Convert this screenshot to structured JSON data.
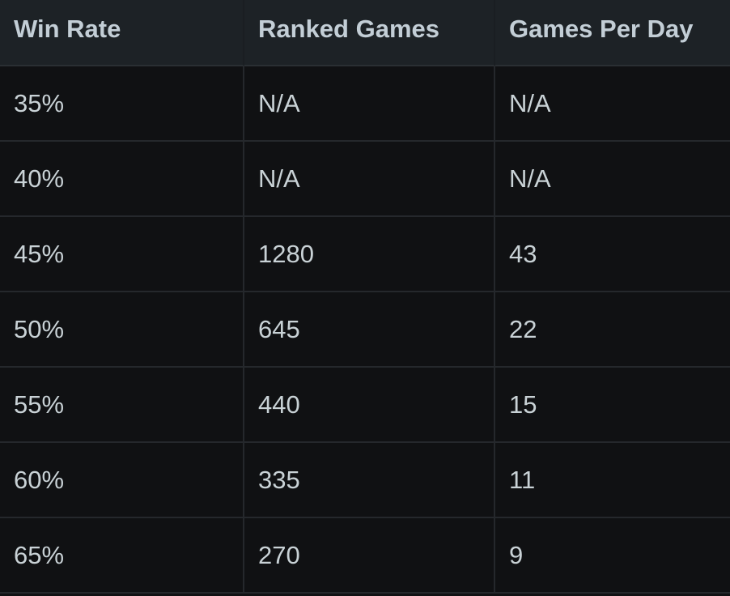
{
  "table": {
    "headers": [
      "Win Rate",
      "Ranked Games",
      "Games Per Day"
    ],
    "rows": [
      [
        "35%",
        "N/A",
        "N/A"
      ],
      [
        "40%",
        "N/A",
        "N/A"
      ],
      [
        "45%",
        "1280",
        "43"
      ],
      [
        "50%",
        "645",
        "22"
      ],
      [
        "55%",
        "440",
        "15"
      ],
      [
        "60%",
        "335",
        "11"
      ],
      [
        "65%",
        "270",
        "9"
      ]
    ]
  }
}
